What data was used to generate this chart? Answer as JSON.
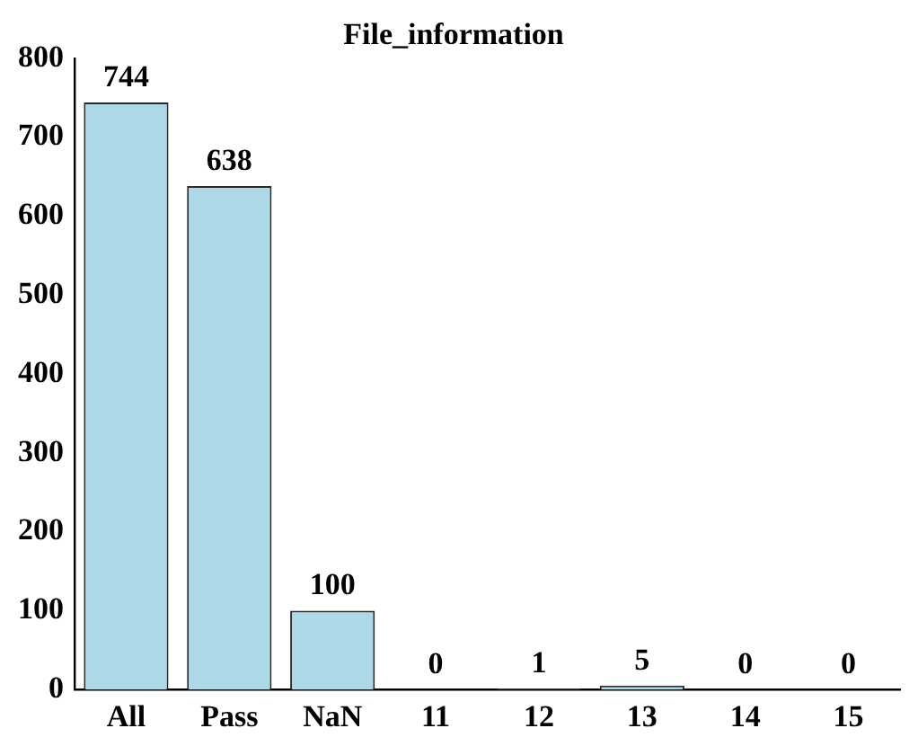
{
  "chart_data": {
    "type": "bar",
    "title": "File_information",
    "categories": [
      "All",
      "Pass",
      "NaN",
      "11",
      "12",
      "13",
      "14",
      "15"
    ],
    "values": [
      744,
      638,
      100,
      0,
      1,
      5,
      0,
      0
    ],
    "color": "#add8e6",
    "ylim": [
      0,
      800
    ],
    "yticks": [
      0,
      100,
      200,
      300,
      400,
      500,
      600,
      700,
      800
    ],
    "grid": false,
    "data_labels": true
  }
}
